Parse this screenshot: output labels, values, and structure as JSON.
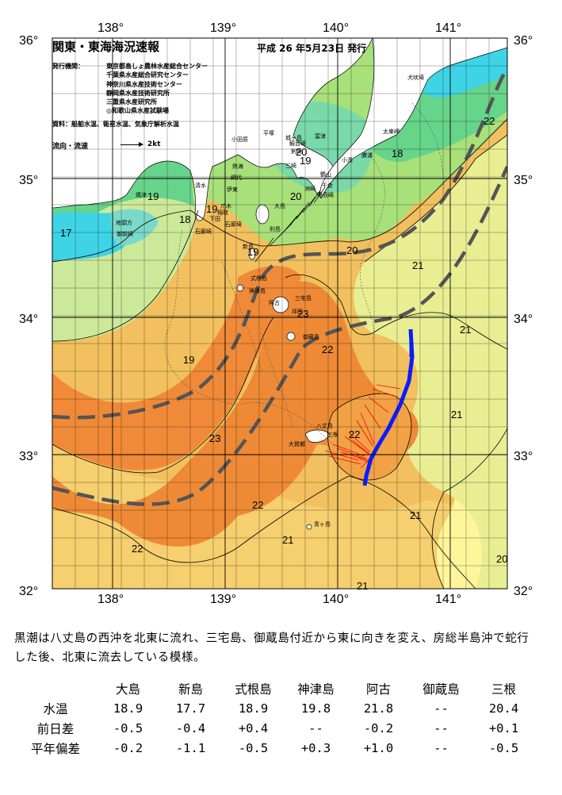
{
  "map": {
    "title": "関東・東海海況速報",
    "date": "平成 26 年5月23日 発行",
    "issuer_label": "発行機関：",
    "issuers": [
      "東京都島しょ農林水産総合センター",
      "千葉県水産総合研究センター",
      "神奈川県水産技術センター",
      "静岡県水産技術研究所",
      "三重県水産研究所",
      "◎和歌山県水産試験場"
    ],
    "source": "資料：船舶水温、衛星水温、気象庁解析水温",
    "flow_legend": "流向・流速",
    "flow_unit": "2kt",
    "lon_labels": [
      "138°",
      "139°",
      "140°",
      "141°"
    ],
    "lat_labels": [
      "36°",
      "35°",
      "34°",
      "33°",
      "32°"
    ],
    "colors": {
      "c17": "#3fd3e6",
      "c18": "#7ad9c8",
      "c19": "#66d48a",
      "c20": "#a8e07a",
      "c21": "#e6ef96",
      "c21b": "#fff59a",
      "c22": "#f6c45c",
      "c22b": "#f2a94a",
      "c23": "#ee8a36",
      "land": "#ffffff",
      "kuroshio_axis": "#555555",
      "track": "#0b1cff",
      "vectors": "#ff0000"
    },
    "isotherm_labels": [
      {
        "t": "17"
      },
      {
        "t": "18"
      },
      {
        "t": "19"
      },
      {
        "t": "19"
      },
      {
        "t": "19"
      },
      {
        "t": "20"
      },
      {
        "t": "20"
      },
      {
        "t": "20"
      },
      {
        "t": "19"
      },
      {
        "t": "18"
      },
      {
        "t": "22"
      },
      {
        "t": "21"
      },
      {
        "t": "21"
      },
      {
        "t": "23"
      },
      {
        "t": "22"
      },
      {
        "t": "19"
      },
      {
        "t": "23"
      },
      {
        "t": "22"
      },
      {
        "t": "21"
      },
      {
        "t": "21"
      },
      {
        "t": "22"
      },
      {
        "t": "21"
      },
      {
        "t": "21"
      },
      {
        "t": "22"
      },
      {
        "t": "20"
      }
    ],
    "place_names": [
      "犬吠埼",
      "太東岬",
      "勝浦",
      "小湊",
      "野島崎",
      "洲崎",
      "富津",
      "千倉",
      "城ヶ島",
      "観音崎",
      "三崎",
      "剣崎",
      "鶴山",
      "平塚",
      "小田原",
      "熱海",
      "伊東",
      "網代",
      "稲取",
      "石廊崎",
      "下田",
      "焼津",
      "御前崎",
      "地頭方",
      "清水",
      "大島",
      "利島",
      "新島",
      "式根島",
      "神津島",
      "三宅島",
      "阿古",
      "坪田",
      "御蔵島",
      "八丈島",
      "三根",
      "大賀郷",
      "青ヶ島",
      "石廊埼",
      "爪木"
    ]
  },
  "summary": "黒潮は八丈島の西沖を北東に流れ、三宅島、御蔵島付近から東に向きを変え、房総半島沖で蛇行した後、北東に流去している模様。",
  "table": {
    "columns": [
      "大島",
      "新島",
      "式根島",
      "神津島",
      "阿古",
      "御蔵島",
      "三根"
    ],
    "rows": [
      {
        "label": "水温",
        "values": [
          "18.9",
          "17.7",
          "18.9",
          "19.8",
          "21.8",
          "--",
          "20.4"
        ]
      },
      {
        "label": "前日差",
        "values": [
          "-0.5",
          "-0.4",
          "+0.4",
          "--",
          "-0.2",
          "--",
          "+0.1"
        ]
      },
      {
        "label": "平年偏差",
        "values": [
          "-0.2",
          "-1.1",
          "-0.5",
          "+0.3",
          "+1.0",
          "--",
          "-0.5"
        ]
      }
    ]
  }
}
